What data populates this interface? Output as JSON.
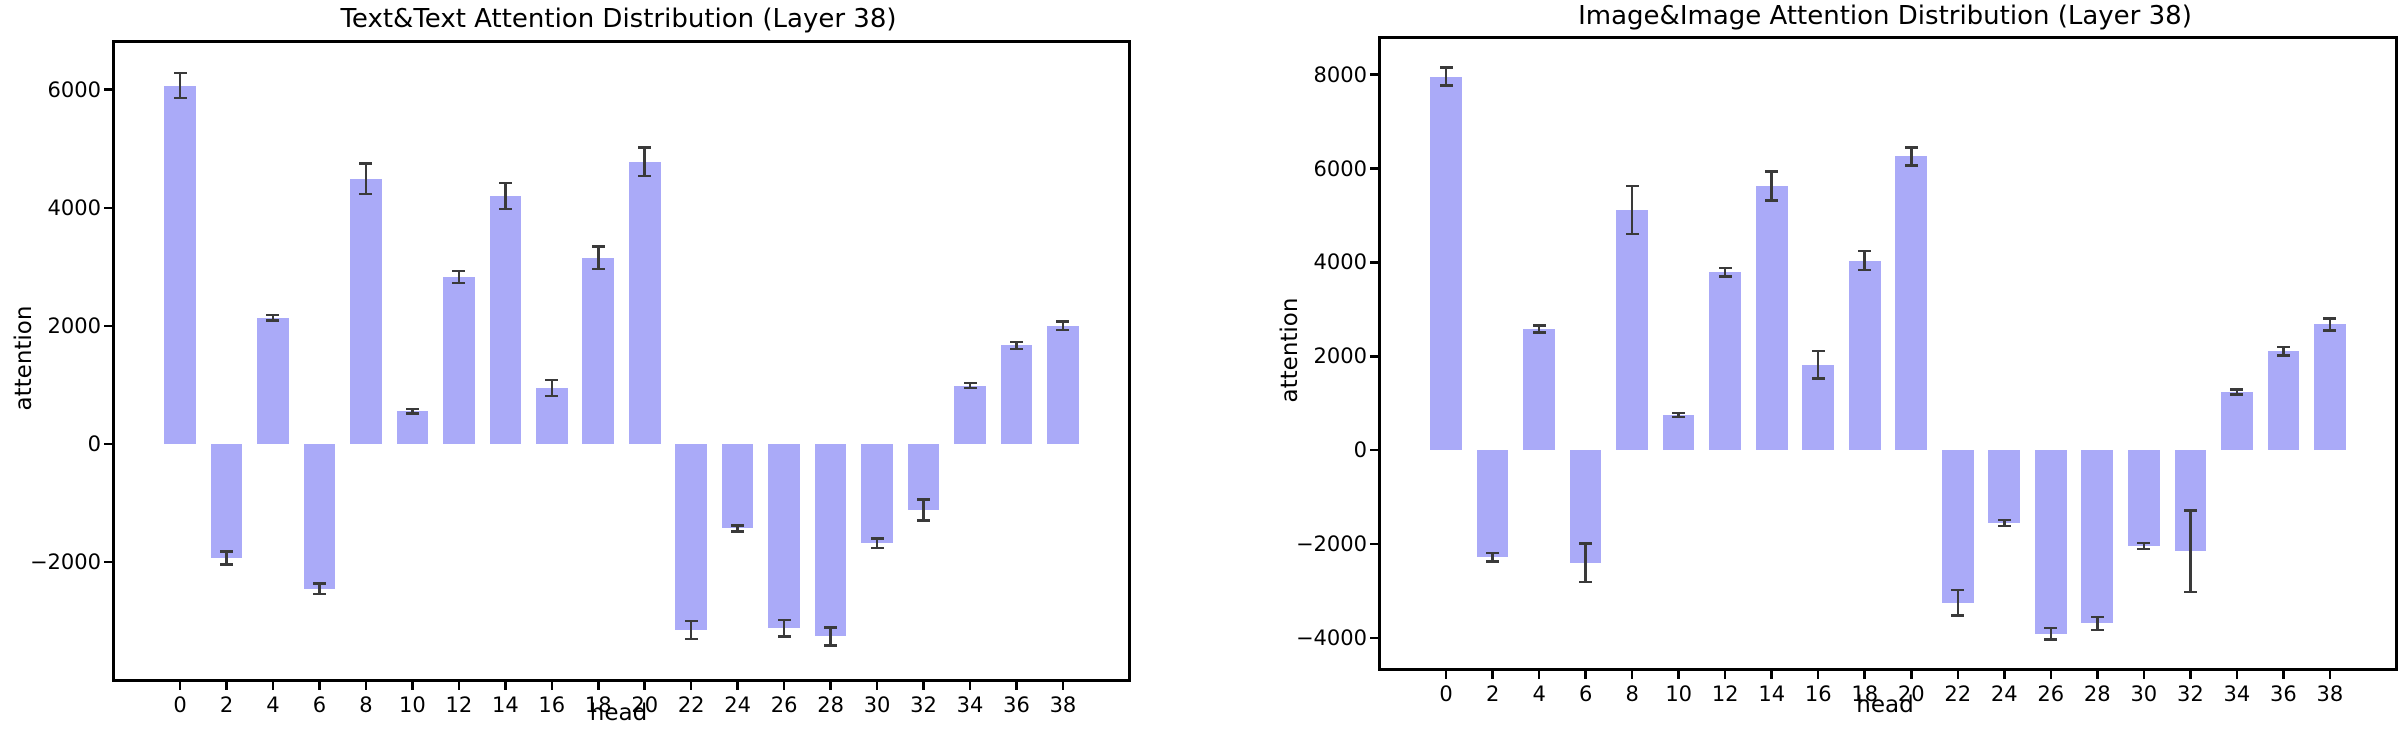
{
  "figure": {
    "background": "#ffffff"
  },
  "chart_data": [
    {
      "type": "bar",
      "title": "Text&Text Attention Distribution (Layer 38)",
      "xlabel": "head",
      "ylabel": "attention",
      "categories": [
        0,
        2,
        4,
        6,
        8,
        10,
        12,
        14,
        16,
        18,
        20,
        22,
        24,
        26,
        28,
        30,
        32,
        34,
        36,
        38
      ],
      "values": [
        6070,
        -1930,
        2140,
        -2450,
        4490,
        555,
        2830,
        4200,
        950,
        3150,
        4780,
        -3150,
        -1430,
        -3120,
        -3260,
        -1680,
        -1120,
        990,
        1670,
        2000
      ],
      "errors": [
        210,
        110,
        45,
        90,
        260,
        40,
        100,
        220,
        135,
        190,
        240,
        155,
        50,
        140,
        150,
        80,
        180,
        40,
        60,
        70
      ],
      "yticks": [
        6000,
        4000,
        2000,
        0,
        -2000
      ],
      "ylim": [
        -3980,
        6790
      ],
      "xlim": [
        -2.8,
        40.8
      ],
      "bar_width_units": 1.36,
      "grid": false,
      "legend": "none",
      "bar_color": "#aaaaf8",
      "error_color": "#3a3a3a"
    },
    {
      "type": "bar",
      "title": "Image&Image Attention Distribution (Layer 38)",
      "xlabel": "head",
      "ylabel": "attention",
      "categories": [
        0,
        2,
        4,
        6,
        8,
        10,
        12,
        14,
        16,
        18,
        20,
        22,
        24,
        26,
        28,
        30,
        32,
        34,
        36,
        38
      ],
      "values": [
        7960,
        -2280,
        2580,
        -2400,
        5120,
        750,
        3790,
        5630,
        1820,
        4040,
        6260,
        -3250,
        -1550,
        -3910,
        -3690,
        -2040,
        -2150,
        1240,
        2110,
        2680
      ],
      "errors": [
        190,
        90,
        75,
        410,
        510,
        40,
        90,
        310,
        290,
        200,
        190,
        270,
        60,
        120,
        140,
        60,
        870,
        50,
        90,
        130
      ],
      "yticks": [
        8000,
        6000,
        4000,
        2000,
        0,
        -2000,
        -4000
      ],
      "ylim": [
        -4640,
        8760
      ],
      "xlim": [
        -2.8,
        40.8
      ],
      "bar_width_units": 1.36,
      "grid": false,
      "legend": "none",
      "bar_color": "#aaaaf8",
      "error_color": "#3a3a3a"
    }
  ]
}
